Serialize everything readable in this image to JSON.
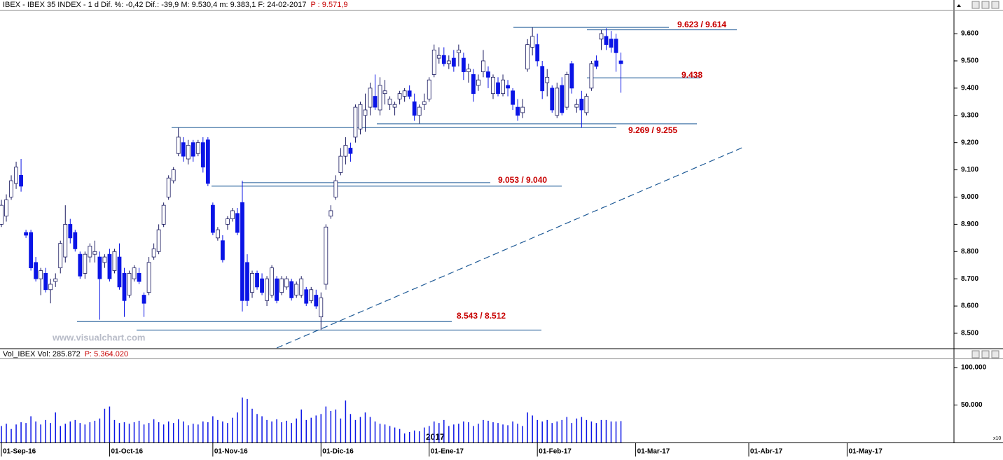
{
  "chart_data": {
    "type": "candlestick",
    "title": "IBEX - IBEX 35 INDEX - 1 d Dif. %: -0,42 Dif.: -39,9 M: 9.530,4 m: 9.383,1 F: 24-02-2017",
    "title_extra": "P : 9.571,9",
    "watermark": "www.visualchart.com",
    "year_label": "2017",
    "scale_label": "x10",
    "up_color": "#ffffff",
    "down_color": "#0a14e6",
    "line_color": "#1e5a96",
    "label_color": "#c80000",
    "x": [
      "2016-09-01",
      "2016-09-02",
      "2016-09-05",
      "2016-09-06",
      "2016-09-07",
      "2016-09-08",
      "2016-09-09",
      "2016-09-12",
      "2016-09-13",
      "2016-09-14",
      "2016-09-15",
      "2016-09-16",
      "2016-09-19",
      "2016-09-20",
      "2016-09-21",
      "2016-09-22",
      "2016-09-23",
      "2016-09-26",
      "2016-09-27",
      "2016-09-28",
      "2016-09-29",
      "2016-09-30",
      "2016-10-03",
      "2016-10-04",
      "2016-10-05",
      "2016-10-06",
      "2016-10-07",
      "2016-10-10",
      "2016-10-11",
      "2016-10-12",
      "2016-10-13",
      "2016-10-14",
      "2016-10-17",
      "2016-10-18",
      "2016-10-19",
      "2016-10-20",
      "2016-10-21",
      "2016-10-24",
      "2016-10-25",
      "2016-10-26",
      "2016-10-27",
      "2016-10-28",
      "2016-10-31",
      "2016-11-01",
      "2016-11-02",
      "2016-11-03",
      "2016-11-04",
      "2016-11-07",
      "2016-11-08",
      "2016-11-09",
      "2016-11-10",
      "2016-11-11",
      "2016-11-14",
      "2016-11-15",
      "2016-11-16",
      "2016-11-17",
      "2016-11-18",
      "2016-11-21",
      "2016-11-22",
      "2016-11-23",
      "2016-11-24",
      "2016-11-25",
      "2016-11-28",
      "2016-11-29",
      "2016-11-30",
      "2016-12-01",
      "2016-12-02",
      "2016-12-05",
      "2016-12-06",
      "2016-12-07",
      "2016-12-08",
      "2016-12-09",
      "2016-12-12",
      "2016-12-13",
      "2016-12-14",
      "2016-12-15",
      "2016-12-16",
      "2016-12-19",
      "2016-12-20",
      "2016-12-21",
      "2016-12-22",
      "2016-12-23",
      "2016-12-26",
      "2016-12-27",
      "2016-12-28",
      "2016-12-29",
      "2016-12-30",
      "2017-01-02",
      "2017-01-03",
      "2017-01-04",
      "2017-01-05",
      "2017-01-06",
      "2017-01-09",
      "2017-01-10",
      "2017-01-11",
      "2017-01-12",
      "2017-01-13",
      "2017-01-16",
      "2017-01-17",
      "2017-01-18",
      "2017-01-19",
      "2017-01-20",
      "2017-01-23",
      "2017-01-24",
      "2017-01-25",
      "2017-01-26",
      "2017-01-27",
      "2017-01-30",
      "2017-01-31",
      "2017-02-01",
      "2017-02-02",
      "2017-02-03",
      "2017-02-06",
      "2017-02-07",
      "2017-02-08",
      "2017-02-09",
      "2017-02-10",
      "2017-02-13",
      "2017-02-14",
      "2017-02-15",
      "2017-02-16",
      "2017-02-17",
      "2017-02-20",
      "2017-02-21",
      "2017-02-22",
      "2017-02-23",
      "2017-02-24"
    ],
    "open": [
      8900,
      8930,
      9000,
      9050,
      9080,
      8870,
      8870,
      8760,
      8700,
      8720,
      8660,
      8690,
      8740,
      8780,
      8900,
      8870,
      8790,
      8720,
      8780,
      8790,
      8780,
      8760,
      8790,
      8730,
      8780,
      8720,
      8640,
      8700,
      8720,
      8640,
      8650,
      8780,
      8800,
      8900,
      9000,
      9060,
      9160,
      9200,
      9140,
      9200,
      9160,
      9200,
      9210,
      8970,
      8850,
      8840,
      8900,
      8920,
      8940,
      8980,
      8760,
      8650,
      8720,
      8700,
      8620,
      8640,
      8700,
      8650,
      8670,
      8690,
      8640,
      8640,
      8660,
      8620,
      8640,
      8560,
      8680,
      8930,
      9000,
      9090,
      9150,
      9180,
      9220,
      9250,
      9300,
      9330,
      9370,
      9320,
      9380,
      9340,
      9330,
      9360,
      9370,
      9390,
      9350,
      9300,
      9340,
      9360,
      9450,
      9510,
      9520,
      9490,
      9510,
      9530,
      9510,
      9460,
      9450,
      9410,
      9460,
      9460,
      9380,
      9420,
      9380,
      9410,
      9390,
      9330,
      9310,
      9470,
      9550,
      9560,
      9480,
      9420,
      9400,
      9300,
      9410,
      9330,
      9490,
      9330,
      9360,
      9310,
      9400,
      9500,
      9580,
      9590,
      9580,
      9580,
      9500
    ],
    "high": [
      8990,
      9010,
      9080,
      9130,
      9140,
      8880,
      8880,
      8780,
      8740,
      8740,
      8700,
      8720,
      8840,
      8970,
      8920,
      8880,
      8800,
      8800,
      8830,
      8840,
      8800,
      8790,
      8810,
      8810,
      8830,
      8740,
      8730,
      8750,
      8740,
      8650,
      8780,
      8830,
      8900,
      8980,
      9080,
      9110,
      9255,
      9220,
      9210,
      9210,
      9210,
      9220,
      9220,
      8980,
      8890,
      8860,
      8930,
      8960,
      8960,
      9060,
      8790,
      8730,
      8730,
      8720,
      8710,
      8750,
      8710,
      8710,
      8710,
      8700,
      8690,
      8710,
      8670,
      8670,
      8660,
      8650,
      8900,
      8970,
      9080,
      9180,
      9220,
      9200,
      9340,
      9350,
      9380,
      9420,
      9450,
      9440,
      9430,
      9370,
      9350,
      9390,
      9400,
      9410,
      9380,
      9340,
      9380,
      9440,
      9560,
      9550,
      9550,
      9520,
      9540,
      9560,
      9530,
      9490,
      9470,
      9450,
      9540,
      9480,
      9450,
      9440,
      9450,
      9430,
      9400,
      9360,
      9360,
      9580,
      9623,
      9600,
      9500,
      9470,
      9410,
      9420,
      9440,
      9460,
      9500,
      9360,
      9390,
      9380,
      9500,
      9520,
      9614,
      9620,
      9610,
      9600,
      9530.4
    ],
    "low": [
      8890,
      8910,
      8990,
      9030,
      9020,
      8850,
      8730,
      8690,
      8640,
      8650,
      8610,
      8670,
      8720,
      8760,
      8830,
      8800,
      8700,
      8700,
      8760,
      8760,
      8550,
      8740,
      8690,
      8720,
      8660,
      8560,
      8630,
      8690,
      8680,
      8560,
      8640,
      8770,
      8790,
      8890,
      8990,
      9050,
      9150,
      9130,
      9120,
      9130,
      9150,
      9090,
      9040,
      8860,
      8840,
      8760,
      8880,
      8910,
      8860,
      8580,
      8600,
      8630,
      8660,
      8640,
      8600,
      8630,
      8610,
      8640,
      8660,
      8620,
      8630,
      8630,
      8600,
      8610,
      8590,
      8512,
      8660,
      8920,
      8990,
      9080,
      9120,
      9130,
      9200,
      9230,
      9240,
      9300,
      9320,
      9300,
      9340,
      9320,
      9300,
      9340,
      9350,
      9360,
      9280,
      9270,
      9320,
      9350,
      9440,
      9490,
      9480,
      9470,
      9460,
      9480,
      9430,
      9420,
      9350,
      9390,
      9440,
      9400,
      9360,
      9370,
      9370,
      9370,
      9320,
      9280,
      9290,
      9460,
      9520,
      9480,
      9360,
      9370,
      9310,
      9290,
      9300,
      9320,
      9380,
      9310,
      9255,
      9300,
      9390,
      9470,
      9540,
      9540,
      9530,
      9460,
      9383.1
    ],
    "close": [
      8970,
      8990,
      9060,
      9110,
      9040,
      8860,
      8740,
      8700,
      8730,
      8660,
      8680,
      8700,
      8830,
      8900,
      8850,
      8810,
      8710,
      8790,
      8820,
      8800,
      8700,
      8780,
      8700,
      8800,
      8670,
      8620,
      8720,
      8740,
      8690,
      8610,
      8760,
      8810,
      8880,
      8970,
      9070,
      9100,
      9220,
      9150,
      9190,
      9150,
      9200,
      9110,
      9050,
      8870,
      8880,
      8770,
      8920,
      8950,
      8870,
      8620,
      8620,
      8720,
      8670,
      8650,
      8700,
      8740,
      8620,
      8700,
      8700,
      8630,
      8680,
      8700,
      8610,
      8660,
      8600,
      8630,
      8890,
      8950,
      9060,
      9150,
      9190,
      9160,
      9330,
      9340,
      9320,
      9400,
      9330,
      9410,
      9390,
      9360,
      9340,
      9380,
      9390,
      9370,
      9300,
      9330,
      9350,
      9430,
      9540,
      9520,
      9490,
      9500,
      9480,
      9540,
      9460,
      9470,
      9380,
      9430,
      9500,
      9440,
      9440,
      9380,
      9430,
      9400,
      9340,
      9300,
      9330,
      9560,
      9590,
      9500,
      9390,
      9440,
      9320,
      9400,
      9310,
      9450,
      9400,
      9340,
      9320,
      9370,
      9490,
      9480,
      9600,
      9560,
      9550,
      9530,
      9490
    ],
    "ylim": [
      8446,
      9685
    ],
    "yticks": [
      {
        "value": 8500,
        "label": "8.500"
      },
      {
        "value": 8600,
        "label": "8.600"
      },
      {
        "value": 8700,
        "label": "8.700"
      },
      {
        "value": 8800,
        "label": "8.800"
      },
      {
        "value": 8900,
        "label": "8.900"
      },
      {
        "value": 9000,
        "label": "9.000"
      },
      {
        "value": 9100,
        "label": "9.100"
      },
      {
        "value": 9200,
        "label": "9.200"
      },
      {
        "value": 9300,
        "label": "9.300"
      },
      {
        "value": 9400,
        "label": "9.400"
      },
      {
        "value": 9500,
        "label": "9.500"
      },
      {
        "value": 9600,
        "label": "9.600"
      }
    ],
    "xticks": [
      {
        "value": "2016-09-01",
        "label": "01-Sep-16"
      },
      {
        "value": "2016-10-01",
        "label": "01-Oct-16"
      },
      {
        "value": "2016-11-01",
        "label": "01-Nov-16"
      },
      {
        "value": "2016-12-01",
        "label": "01-Dic-16"
      },
      {
        "value": "2017-01-01",
        "label": "01-Ene-17"
      },
      {
        "value": "2017-02-01",
        "label": "01-Feb-17"
      },
      {
        "value": "2017-03-01",
        "label": "01-Mar-17"
      },
      {
        "value": "2017-04-01",
        "label": "01-Abr-17"
      },
      {
        "value": "2017-05-01",
        "label": "01-May-17"
      }
    ],
    "annotations": [
      {
        "label": "9.623 / 9.614",
        "levels": [
          9623,
          9614
        ]
      },
      {
        "label": "9.438",
        "levels": [
          9438
        ]
      },
      {
        "label": "9.269 / 9.255",
        "levels": [
          9269,
          9255
        ]
      },
      {
        "label": "9.053 / 9.040",
        "levels": [
          9053,
          9040
        ]
      },
      {
        "label": "8.543 / 8.512",
        "levels": [
          8543,
          8512
        ]
      }
    ],
    "trendline": {
      "x": [
        "2016-11-18",
        "2017-03-31"
      ],
      "y": [
        8446,
        9184
      ]
    },
    "volume": {
      "title": "Vol_IBEX Vol: 285.872",
      "title_extra": "P: 5.364.020",
      "color": "#0a14e6",
      "values": [
        22000,
        25000,
        18000,
        24000,
        27000,
        26000,
        35000,
        28000,
        24000,
        30000,
        26000,
        40000,
        22000,
        25000,
        28000,
        30000,
        26000,
        24000,
        27000,
        29000,
        32000,
        45000,
        48000,
        30000,
        26000,
        27000,
        25000,
        27000,
        29000,
        24000,
        26000,
        31000,
        27000,
        24000,
        28000,
        26000,
        31000,
        28000,
        23000,
        25000,
        24000,
        28000,
        27000,
        35000,
        30000,
        28000,
        26000,
        33000,
        40000,
        60000,
        58000,
        45000,
        38000,
        35000,
        30000,
        28000,
        31000,
        27000,
        29000,
        26000,
        32000,
        44000,
        30000,
        33000,
        36000,
        38000,
        48000,
        42000,
        44000,
        32000,
        56000,
        38000,
        30000,
        34000,
        40000,
        34000,
        28000,
        25000,
        24000,
        22000,
        20000,
        18000,
        12000,
        14000,
        16000,
        15000,
        20000,
        22000,
        28000,
        26000,
        30000,
        22000,
        24000,
        25000,
        28000,
        27000,
        22000,
        25000,
        30000,
        29000,
        27000,
        26000,
        24000,
        23000,
        28000,
        25000,
        22000,
        40000,
        36000,
        30000,
        28000,
        30000,
        26000,
        28000,
        30000,
        34000,
        26000,
        32000,
        34000,
        30000,
        28000,
        26000,
        30000,
        30000,
        28000,
        28000,
        28587
      ],
      "ylim": [
        0,
        112000
      ],
      "yticks": [
        {
          "value": 50000,
          "label": "50.000"
        },
        {
          "value": 100000,
          "label": "100.000"
        }
      ]
    }
  }
}
